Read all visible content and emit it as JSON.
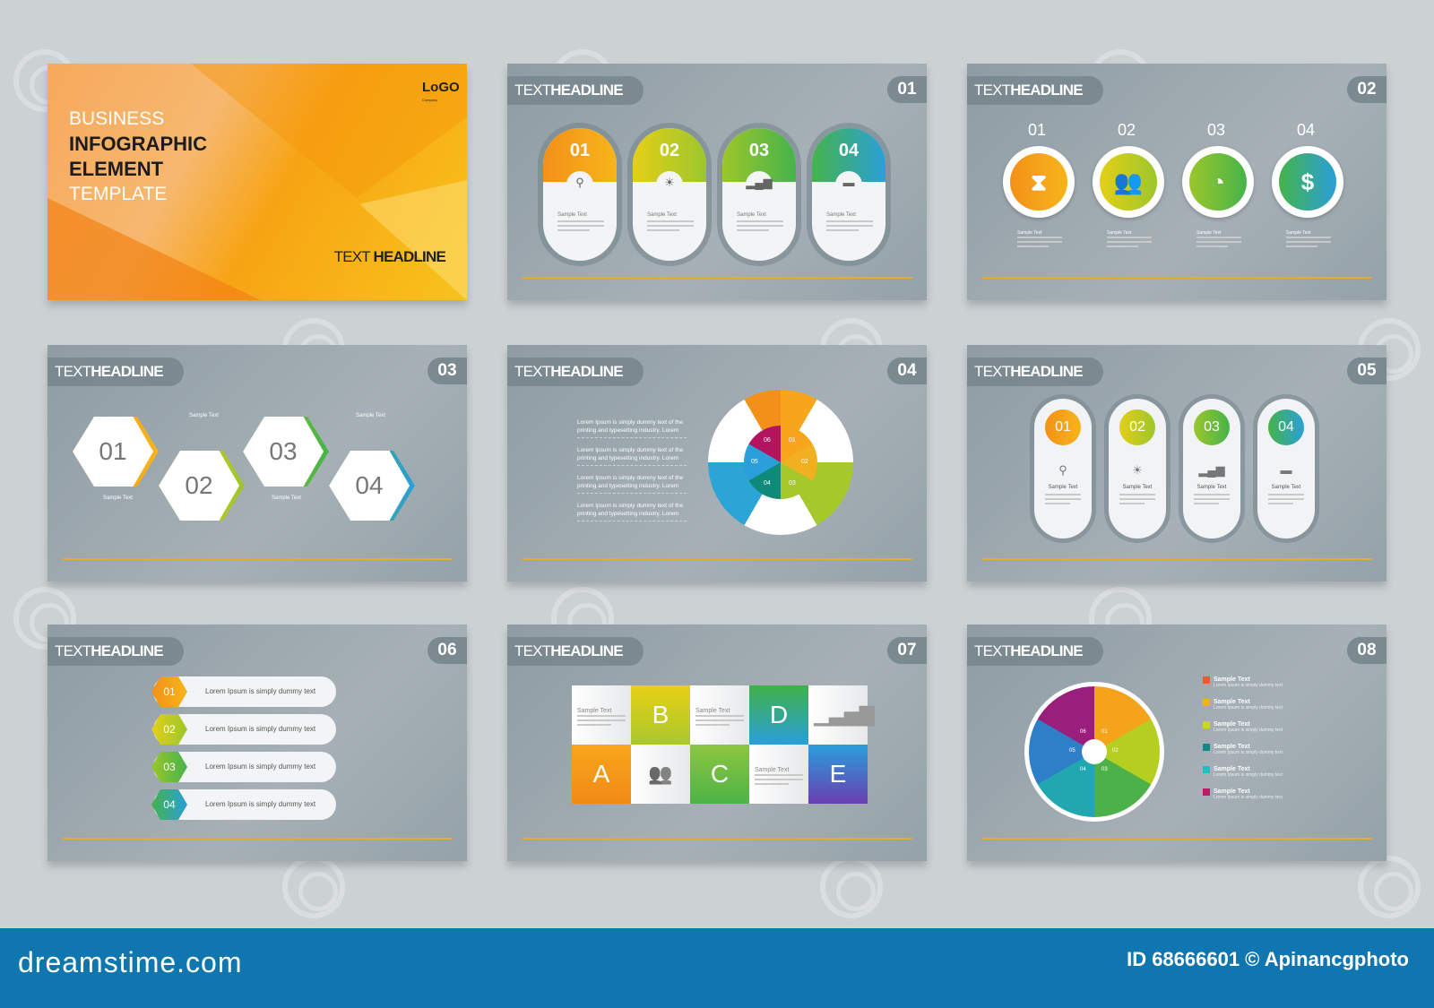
{
  "cover": {
    "line1": "BUSINESS",
    "line2": "INFOGRAPHIC",
    "line3": "ELEMENT",
    "line4": "TEMPLATE",
    "headline_light": "TEXT",
    "headline_bold": "HEADLINE",
    "logo": "LoGO",
    "logo_sub": "Company"
  },
  "header": {
    "light": "TEXT",
    "bold": "HEADLINE"
  },
  "slide_numbers": [
    "01",
    "02",
    "03",
    "04",
    "05",
    "06",
    "07",
    "08"
  ],
  "sample_text": "Sample Text",
  "colors": {
    "orange": "#f39019",
    "yellow": "#e4cf18",
    "lime": "#9cc62c",
    "green": "#45b34a",
    "teal": "#1fa6a0",
    "blue": "#2a9fd9",
    "magenta": "#b3135f",
    "accent_line": "#e2ad2b",
    "footer": "#0f76b0"
  },
  "slide1": {
    "items": [
      {
        "num": "01",
        "icon": "search-icon"
      },
      {
        "num": "02",
        "icon": "lightbulb-icon"
      },
      {
        "num": "03",
        "icon": "bar-chart-icon"
      },
      {
        "num": "04",
        "icon": "chat-icon"
      }
    ]
  },
  "slide2": {
    "items": [
      {
        "num": "01",
        "icon": "hourglass-icon"
      },
      {
        "num": "02",
        "icon": "users-icon"
      },
      {
        "num": "03",
        "icon": "pie-chart-icon"
      },
      {
        "num": "04",
        "icon": "dollar-icon"
      }
    ]
  },
  "slide3": {
    "items": [
      {
        "num": "01"
      },
      {
        "num": "02"
      },
      {
        "num": "03"
      },
      {
        "num": "04"
      }
    ]
  },
  "slide4": {
    "paragraphs": [
      "Lorem Ipsum is simply dummy text of the printing and typesetting industry. Lorem",
      "Lorem Ipsum is simply dummy text of the printing and typesetting industry. Lorem",
      "Lorem Ipsum is simply dummy text of the printing and typesetting industry. Lorem",
      "Lorem Ipsum is simply dummy text of the printing and typesetting industry. Lorem"
    ],
    "segments": [
      "01",
      "02",
      "03",
      "04",
      "05",
      "06"
    ]
  },
  "slide5": {
    "items": [
      {
        "num": "01",
        "icon": "search-icon"
      },
      {
        "num": "02",
        "icon": "lightbulb-icon"
      },
      {
        "num": "03",
        "icon": "bar-chart-icon"
      },
      {
        "num": "04",
        "icon": "chat-icon"
      }
    ]
  },
  "slide6": {
    "items": [
      {
        "num": "01",
        "text": "Lorem Ipsum is simply dummy text"
      },
      {
        "num": "02",
        "text": "Lorem Ipsum is simply dummy text"
      },
      {
        "num": "03",
        "text": "Lorem Ipsum is simply dummy text"
      },
      {
        "num": "04",
        "text": "Lorem Ipsum is simply dummy text"
      }
    ]
  },
  "slide7": {
    "letters": [
      "A",
      "B",
      "C",
      "D",
      "E"
    ]
  },
  "slide8": {
    "segments": [
      "01",
      "02",
      "03",
      "04",
      "05",
      "06"
    ],
    "legend": [
      {
        "title": "Sample Text",
        "text": "Lorem Ipsum is simply dummy text"
      },
      {
        "title": "Sample Text",
        "text": "Lorem Ipsum is simply dummy text"
      },
      {
        "title": "Sample Text",
        "text": "Lorem Ipsum is simply dummy text"
      },
      {
        "title": "Sample Text",
        "text": "Lorem Ipsum is simply dummy text"
      },
      {
        "title": "Sample Text",
        "text": "Lorem Ipsum is simply dummy text"
      },
      {
        "title": "Sample Text",
        "text": "Lorem Ipsum is simply dummy text"
      }
    ]
  },
  "footer": {
    "brand": "dreamstime.com",
    "credit": "ID 68666601 © Apinancgphoto"
  }
}
